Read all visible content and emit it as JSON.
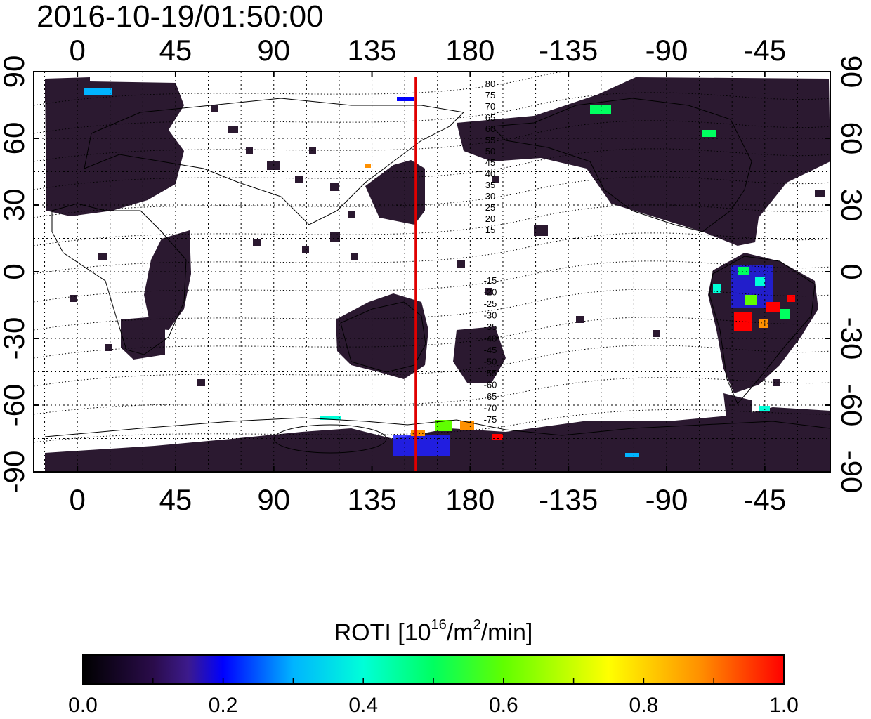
{
  "timestamp": "2016-10-19/01:50:00",
  "map": {
    "longitude_ticks": [
      0,
      45,
      90,
      135,
      180,
      -135,
      -90,
      -45
    ],
    "latitude_ticks": [
      90,
      60,
      30,
      0,
      -30,
      -60,
      -90
    ],
    "longitude_range": [
      -20,
      345
    ],
    "latitude_range": [
      -90,
      90
    ],
    "grid": "dotted, 15 degree spacing",
    "red_meridian_longitude": 155,
    "magnetic_latitude_contour_labels": {
      "north": [
        "80",
        "75",
        "70",
        "65",
        "60",
        "55",
        "50",
        "45",
        "40",
        "35",
        "30",
        "25",
        "20",
        "15"
      ],
      "south": [
        "-15",
        "-20",
        "-25",
        "-30",
        "-35",
        "-40",
        "-45",
        "-50",
        "-55",
        "-60",
        "-65",
        "-70",
        "-75"
      ]
    }
  },
  "colorbar": {
    "title_main": "ROTI  [10",
    "title_sup1": "16",
    "title_mid": "/m",
    "title_sup2": "2",
    "title_end": "/min]",
    "min": 0.0,
    "max": 1.0,
    "tick_labels": [
      "0.0",
      "0.2",
      "0.4",
      "0.6",
      "0.8",
      "1.0"
    ],
    "colors": [
      "#000000",
      "#2a0c4a",
      "#3c1a8c",
      "#0000ff",
      "#00b4ff",
      "#00ffd8",
      "#00ff60",
      "#60ff00",
      "#ffff00",
      "#ff9000",
      "#ff0000"
    ]
  },
  "colors": {
    "land_fill": "#2b1930",
    "high_roti": "#ff0000",
    "meridian": "#e00000"
  }
}
